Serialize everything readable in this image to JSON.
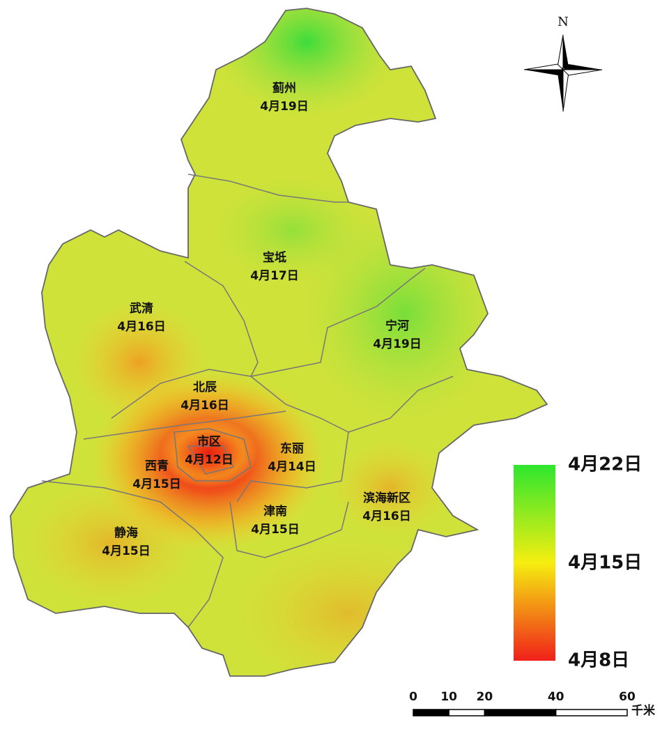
{
  "map": {
    "north_label": "N",
    "districts": [
      {
        "name": "蓟州",
        "date": "4月19日"
      },
      {
        "name": "宝坻",
        "date": "4月17日"
      },
      {
        "name": "武清",
        "date": "4月16日"
      },
      {
        "name": "宁河",
        "date": "4月19日"
      },
      {
        "name": "北辰",
        "date": "4月16日"
      },
      {
        "name": "市区",
        "date": "4月12日"
      },
      {
        "name": "东丽",
        "date": "4月14日"
      },
      {
        "name": "西青",
        "date": "4月15日"
      },
      {
        "name": "滨海新区",
        "date": "4月16日"
      },
      {
        "name": "津南",
        "date": "4月15日"
      },
      {
        "name": "静海",
        "date": "4月15日"
      }
    ],
    "legend": {
      "labels": [
        "4月22日",
        "4月15日",
        "4月8日"
      ]
    },
    "scale_bar": {
      "ticks": [
        0,
        10,
        20,
        40,
        60
      ],
      "unit": "千米"
    }
  }
}
